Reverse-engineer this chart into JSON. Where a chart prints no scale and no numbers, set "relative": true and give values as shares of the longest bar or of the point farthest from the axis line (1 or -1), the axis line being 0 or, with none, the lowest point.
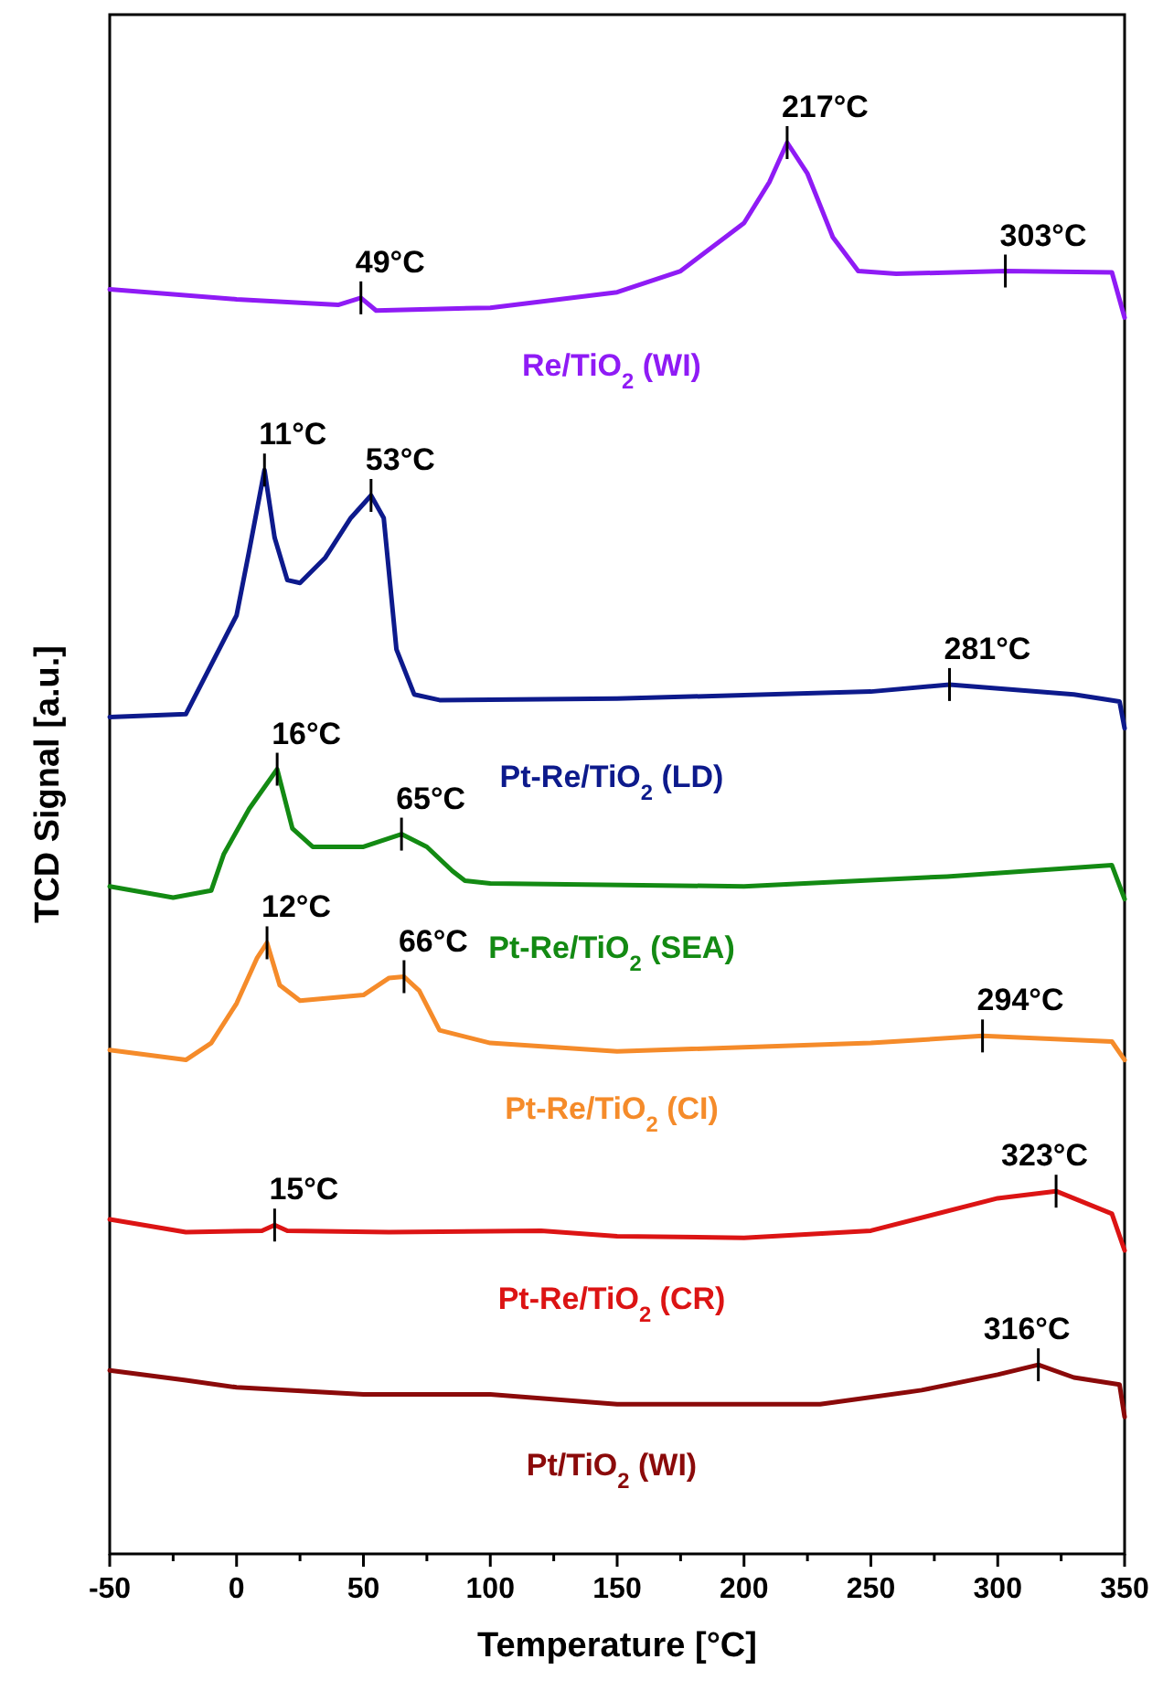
{
  "chart_data": {
    "type": "line",
    "relative": true,
    "xlabel": "Temperature [°C]",
    "ylabel": "TCD Signal [a.u.]",
    "xlim": [
      -50,
      350
    ],
    "xticks": [
      -50,
      {
        "value": -25,
        "label": null
      },
      0,
      {
        "value": 25,
        "label": null
      },
      50,
      {
        "value": 75,
        "label": null
      },
      100,
      {
        "value": 125,
        "label": null
      },
      150,
      {
        "value": 175,
        "label": null
      },
      200,
      {
        "value": 225,
        "label": null
      },
      250,
      {
        "value": 275,
        "label": null
      },
      300,
      {
        "value": 325,
        "label": null
      },
      350
    ],
    "series": [
      {
        "name": "Re/TiO$_{2}$ (WI)",
        "color": "#8f1bf5",
        "x": [
          -50,
          0,
          40,
          49,
          55,
          100,
          150,
          175,
          200,
          210,
          217,
          225,
          235,
          245,
          260,
          303,
          345,
          350
        ],
        "values": [
          0.896,
          0.889,
          0.885,
          0.89,
          0.881,
          0.883,
          0.894,
          0.909,
          0.943,
          0.972,
          1.0,
          0.978,
          0.933,
          0.909,
          0.907,
          0.909,
          0.908,
          0.876
        ]
      },
      {
        "name": "Pt-Re/TiO$_{2}$ (LD)",
        "color": "#0d1a8c",
        "x": [
          -50,
          -20,
          0,
          5,
          11,
          15,
          20,
          25,
          35,
          45,
          53,
          58,
          63,
          70,
          80,
          150,
          250,
          281,
          330,
          348,
          350
        ],
        "values": [
          0.593,
          0.595,
          0.665,
          0.711,
          0.768,
          0.72,
          0.69,
          0.688,
          0.706,
          0.734,
          0.75,
          0.734,
          0.641,
          0.609,
          0.605,
          0.606,
          0.611,
          0.616,
          0.609,
          0.604,
          0.585
        ]
      },
      {
        "name": "Pt-Re/TiO$_{2}$ (SEA)",
        "color": "#138a13",
        "x": [
          -50,
          -25,
          -10,
          -5,
          5,
          16,
          22,
          30,
          50,
          65,
          75,
          85,
          90,
          100,
          200,
          280,
          345,
          350
        ],
        "values": [
          0.473,
          0.465,
          0.47,
          0.496,
          0.528,
          0.556,
          0.514,
          0.501,
          0.501,
          0.51,
          0.501,
          0.484,
          0.477,
          0.475,
          0.473,
          0.48,
          0.488,
          0.464
        ]
      },
      {
        "name": "Pt-Re/TiO$_{2}$ (CI)",
        "color": "#f58b2a",
        "x": [
          -50,
          -20,
          -10,
          0,
          8,
          12,
          17,
          25,
          50,
          60,
          66,
          72,
          80,
          100,
          150,
          250,
          294,
          345,
          350
        ],
        "values": [
          0.357,
          0.35,
          0.362,
          0.39,
          0.422,
          0.433,
          0.403,
          0.392,
          0.396,
          0.408,
          0.409,
          0.399,
          0.371,
          0.362,
          0.356,
          0.362,
          0.367,
          0.363,
          0.35
        ]
      },
      {
        "name": "Pt-Re/TiO$_{2}$ (CR)",
        "color": "#dc1414",
        "x": [
          -50,
          -20,
          10,
          15,
          20,
          60,
          120,
          150,
          200,
          250,
          300,
          323,
          345,
          350
        ],
        "values": [
          0.237,
          0.228,
          0.229,
          0.233,
          0.229,
          0.228,
          0.229,
          0.225,
          0.224,
          0.229,
          0.252,
          0.257,
          0.241,
          0.215
        ]
      },
      {
        "name": "Pt/TiO$_{2}$ (WI)",
        "color": "#8b0a0a",
        "x": [
          -50,
          -20,
          0,
          50,
          100,
          150,
          230,
          270,
          300,
          316,
          330,
          348,
          350
        ],
        "values": [
          0.13,
          0.123,
          0.118,
          0.113,
          0.113,
          0.106,
          0.106,
          0.116,
          0.127,
          0.134,
          0.125,
          0.12,
          0.097
        ]
      }
    ],
    "annotations": [
      {
        "text": "49°C",
        "x": 49,
        "y": 0.89
      },
      {
        "text": "217°C",
        "x": 217,
        "y": 1.0
      },
      {
        "text": "303°C",
        "x": 303,
        "y": 0.909
      },
      {
        "text": "11°C",
        "x": 11,
        "y": 0.768
      },
      {
        "text": "53°C",
        "x": 53,
        "y": 0.75
      },
      {
        "text": "281°C",
        "x": 281,
        "y": 0.616
      },
      {
        "text": "16°C",
        "x": 16,
        "y": 0.556
      },
      {
        "text": "65°C",
        "x": 65,
        "y": 0.51
      },
      {
        "text": "12°C",
        "x": 12,
        "y": 0.433
      },
      {
        "text": "66°C",
        "x": 66,
        "y": 0.409
      },
      {
        "text": "294°C",
        "x": 294,
        "y": 0.367
      },
      {
        "text": "15°C",
        "x": 15,
        "y": 0.233
      },
      {
        "text": "323°C",
        "x": 323,
        "y": 0.257
      },
      {
        "text": "316°C",
        "x": 316,
        "y": 0.134
      }
    ]
  }
}
